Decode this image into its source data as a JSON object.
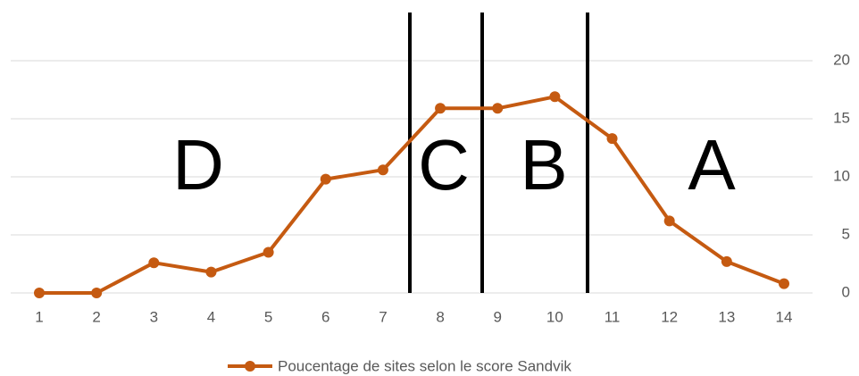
{
  "chart_data": {
    "type": "line",
    "categories": [
      "1",
      "2",
      "3",
      "4",
      "5",
      "6",
      "7",
      "8",
      "9",
      "10",
      "11",
      "12",
      "13",
      "14"
    ],
    "series": [
      {
        "name": "Poucentage de sites selon le score Sandvik",
        "color": "#c55a11",
        "values": [
          0,
          0,
          2.6,
          1.8,
          3.5,
          9.8,
          10.6,
          15.9,
          15.9,
          16.9,
          13.3,
          6.2,
          2.7,
          0.8
        ]
      }
    ],
    "ylim": [
      0,
      20
    ],
    "yticks": [
      0,
      5,
      10,
      15,
      20
    ],
    "grid": true,
    "legend": "bottom",
    "annotations": [
      "D",
      "C",
      "B",
      "A"
    ]
  }
}
